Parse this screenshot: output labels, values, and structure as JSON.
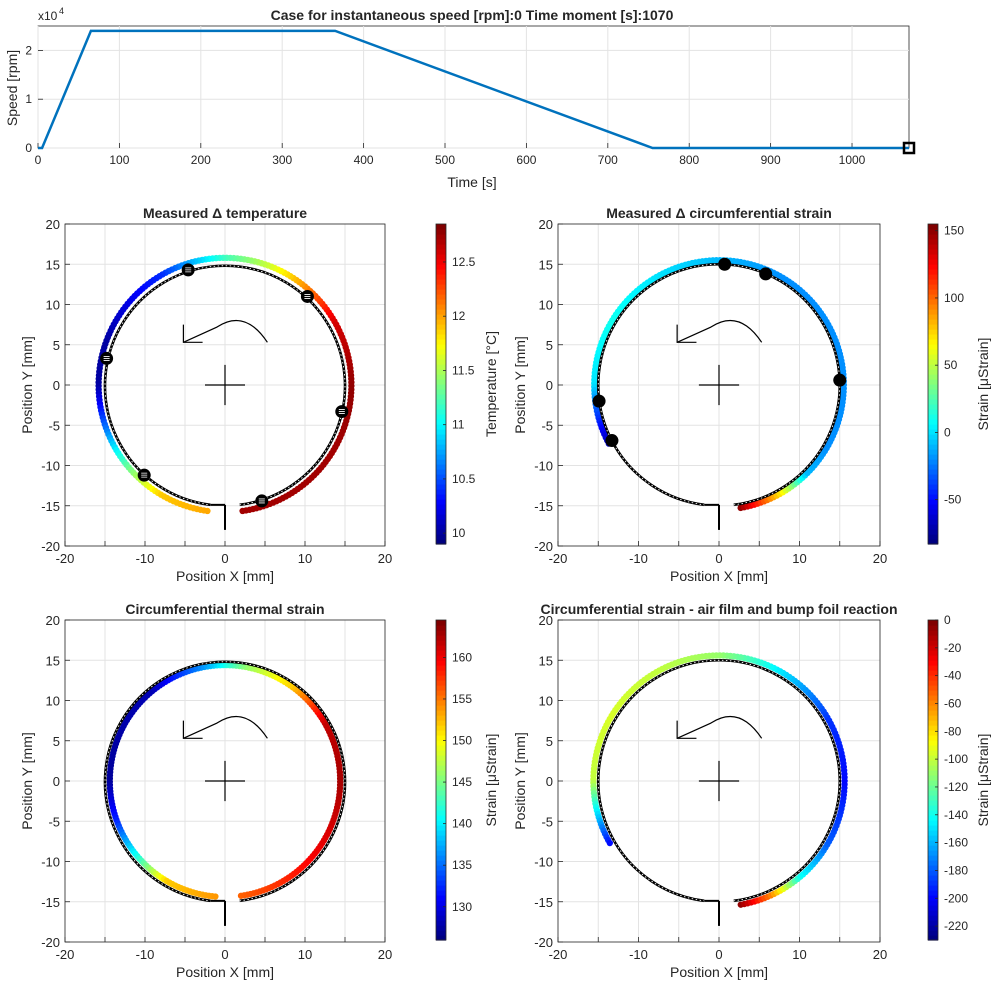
{
  "figure": {
    "top": {
      "title": "Case for instantaneous speed [rpm]:0 Time moment [s]:1070",
      "xlabel": "Time [s]",
      "ylabel": "Speed [rpm]",
      "exponent_base": "x10",
      "exponent_power": "4"
    },
    "colorbar_ticks": {
      "temperature": [
        "12.5",
        "12",
        "11.5",
        "11",
        "10.5",
        "10"
      ],
      "strain_measured": [
        "150",
        "100",
        "50",
        "0",
        "-50"
      ],
      "strain_thermal": [
        "160",
        "155",
        "150",
        "145",
        "140",
        "135",
        "130"
      ],
      "strain_reaction": [
        "0",
        "-20",
        "-40",
        "-60",
        "-80",
        "-100",
        "-120",
        "-140",
        "-160",
        "-180",
        "-200",
        "-220"
      ]
    },
    "panels": [
      {
        "title": "Measured Δ temperature",
        "xlabel": "Position X [mm]",
        "ylabel": "Position Y [mm]",
        "cblabel": "Temperature [°C]"
      },
      {
        "title": "Measured Δ circumferential strain",
        "xlabel": "Position X [mm]",
        "ylabel": "Position Y [mm]",
        "cblabel": "Strain [μStrain]"
      },
      {
        "title": "Circumferential thermal strain",
        "xlabel": "Position X [mm]",
        "ylabel": "Position Y [mm]",
        "cblabel": "Strain [μStrain]"
      },
      {
        "title": "Circumferential strain - air film and bump foil reaction",
        "xlabel": "Position X [mm]",
        "ylabel": "Position Y [mm]",
        "cblabel": "Strain [μStrain]"
      }
    ]
  },
  "chart_data": [
    {
      "type": "line",
      "title": "Case for instantaneous speed [rpm]:0 Time moment [s]:1070",
      "xlabel": "Time [s]",
      "ylabel": "Speed [rpm]",
      "xlim": [
        0,
        1070
      ],
      "ylim": [
        0,
        25000
      ],
      "xticks": [
        0,
        100,
        200,
        300,
        400,
        500,
        600,
        700,
        800,
        900,
        1000
      ],
      "yticks": [
        0,
        10000,
        20000
      ],
      "ytick_labels": [
        "0",
        "1",
        "2"
      ],
      "grid": true,
      "color": "#0072BD",
      "x": [
        0,
        5,
        65,
        365,
        755,
        1070
      ],
      "y": [
        0,
        0,
        24000,
        24000,
        0,
        0
      ],
      "current_marker": {
        "x": 1070,
        "y": 0,
        "color": "#000000"
      }
    },
    {
      "type": "scatter",
      "title": "Measured Δ temperature",
      "xlabel": "Position X [mm]",
      "ylabel": "Position Y [mm]",
      "xlim": [
        -20,
        20
      ],
      "ylim": [
        -20,
        20
      ],
      "ticks": [
        -20,
        -15,
        -10,
        -5,
        0,
        5,
        10,
        15,
        20
      ],
      "grid": true,
      "colormap": "jet",
      "colorbar": {
        "label": "Temperature [°C]",
        "min": 9.9,
        "max": 12.85,
        "ticks": [
          10,
          10.5,
          11,
          11.5,
          12,
          12.5
        ]
      },
      "ring": {
        "radius": 15,
        "gap_start_deg": 263,
        "gap_end_deg": 277
      },
      "color_band": {
        "radius": 15.8,
        "start_deg": -82,
        "end_deg": 263,
        "v_start": 12.75,
        "v_end": 12.0,
        "anchors": [
          [
            -82,
            12.75
          ],
          [
            -30,
            12.75
          ],
          [
            0,
            12.8
          ],
          [
            30,
            12.6
          ],
          [
            50,
            12.1
          ],
          [
            70,
            11.6
          ],
          [
            90,
            11.2
          ],
          [
            120,
            10.4
          ],
          [
            160,
            10.0
          ],
          [
            180,
            10.0
          ],
          [
            200,
            10.6
          ],
          [
            220,
            11.3
          ],
          [
            240,
            11.9
          ],
          [
            263,
            12.0
          ]
        ]
      },
      "sensors": [
        {
          "x": -4.6,
          "y": 14.3
        },
        {
          "x": 10.3,
          "y": 11.0
        },
        {
          "x": -14.8,
          "y": 3.3
        },
        {
          "x": 14.6,
          "y": -3.3
        },
        {
          "x": -10.1,
          "y": -11.2
        },
        {
          "x": 4.6,
          "y": -14.4
        }
      ]
    },
    {
      "type": "scatter",
      "title": "Measured Δ circumferential strain",
      "xlabel": "Position X [mm]",
      "ylabel": "Position Y [mm]",
      "xlim": [
        -20,
        20
      ],
      "ylim": [
        -20,
        20
      ],
      "ticks": [
        -20,
        -15,
        -10,
        -5,
        0,
        5,
        10,
        15,
        20
      ],
      "grid": true,
      "colormap": "jet",
      "colorbar": {
        "label": "Strain [μStrain]",
        "min": -83,
        "max": 155,
        "ticks": [
          -50,
          0,
          50,
          100,
          150
        ]
      },
      "ring": {
        "radius": 15,
        "gap_start_deg": 263,
        "gap_end_deg": 277
      },
      "color_band": {
        "radius": 15.5,
        "start_deg": -80,
        "end_deg": 208,
        "anchors": [
          [
            -80,
            150
          ],
          [
            -60,
            70
          ],
          [
            -45,
            -10
          ],
          [
            -30,
            -20
          ],
          [
            0,
            -20
          ],
          [
            60,
            -20
          ],
          [
            90,
            -10
          ],
          [
            150,
            10
          ],
          [
            180,
            0
          ],
          [
            190,
            -30
          ],
          [
            208,
            -70
          ]
        ]
      },
      "sensors": [
        {
          "x": 0.7,
          "y": 15.0
        },
        {
          "x": 5.8,
          "y": 13.8
        },
        {
          "x": 15.0,
          "y": 0.6
        },
        {
          "x": -14.9,
          "y": -2.0
        },
        {
          "x": -13.3,
          "y": -6.9
        }
      ]
    },
    {
      "type": "scatter",
      "title": "Circumferential thermal strain",
      "xlabel": "Position X [mm]",
      "ylabel": "Position Y [mm]",
      "xlim": [
        -20,
        20
      ],
      "ylim": [
        -20,
        20
      ],
      "ticks": [
        -20,
        -15,
        -10,
        -5,
        0,
        5,
        10,
        15,
        20
      ],
      "grid": true,
      "colormap": "jet",
      "colorbar": {
        "label": "Strain [μStrain]",
        "min": 126,
        "max": 164.5,
        "ticks": [
          130,
          135,
          140,
          145,
          150,
          155,
          160
        ]
      },
      "ring": {
        "radius": 15,
        "gap_start_deg": 263,
        "gap_end_deg": 277
      },
      "color_band": {
        "radius": 14.4,
        "start_deg": -82,
        "end_deg": 266,
        "anchors": [
          [
            -82,
            156
          ],
          [
            -40,
            160
          ],
          [
            0,
            163
          ],
          [
            30,
            162
          ],
          [
            55,
            152
          ],
          [
            80,
            146
          ],
          [
            100,
            137
          ],
          [
            130,
            128
          ],
          [
            180,
            127
          ],
          [
            200,
            132
          ],
          [
            220,
            141
          ],
          [
            240,
            152
          ],
          [
            266,
            154
          ]
        ]
      }
    },
    {
      "type": "scatter",
      "title": "Circumferential strain - air film and bump foil reaction",
      "xlabel": "Position X [mm]",
      "ylabel": "Position Y [mm]",
      "xlim": [
        -20,
        20
      ],
      "ylim": [
        -20,
        20
      ],
      "ticks": [
        -20,
        -15,
        -10,
        -5,
        0,
        5,
        10,
        15,
        20
      ],
      "grid": true,
      "colormap": "jet",
      "colorbar": {
        "label": "Strain [μStrain]",
        "min": -230,
        "max": 0,
        "ticks": [
          0,
          -20,
          -40,
          -60,
          -80,
          -100,
          -120,
          -140,
          -160,
          -180,
          -200,
          -220
        ]
      },
      "ring": {
        "radius": 15,
        "gap_start_deg": 263,
        "gap_end_deg": 277
      },
      "color_band": {
        "radius": 15.6,
        "start_deg": -80,
        "end_deg": 210,
        "anchors": [
          [
            -80,
            -5
          ],
          [
            -65,
            -60
          ],
          [
            -50,
            -140
          ],
          [
            -30,
            -180
          ],
          [
            0,
            -200
          ],
          [
            30,
            -190
          ],
          [
            60,
            -150
          ],
          [
            90,
            -110
          ],
          [
            120,
            -100
          ],
          [
            150,
            -95
          ],
          [
            180,
            -100
          ],
          [
            195,
            -150
          ],
          [
            210,
            -200
          ]
        ]
      }
    }
  ]
}
